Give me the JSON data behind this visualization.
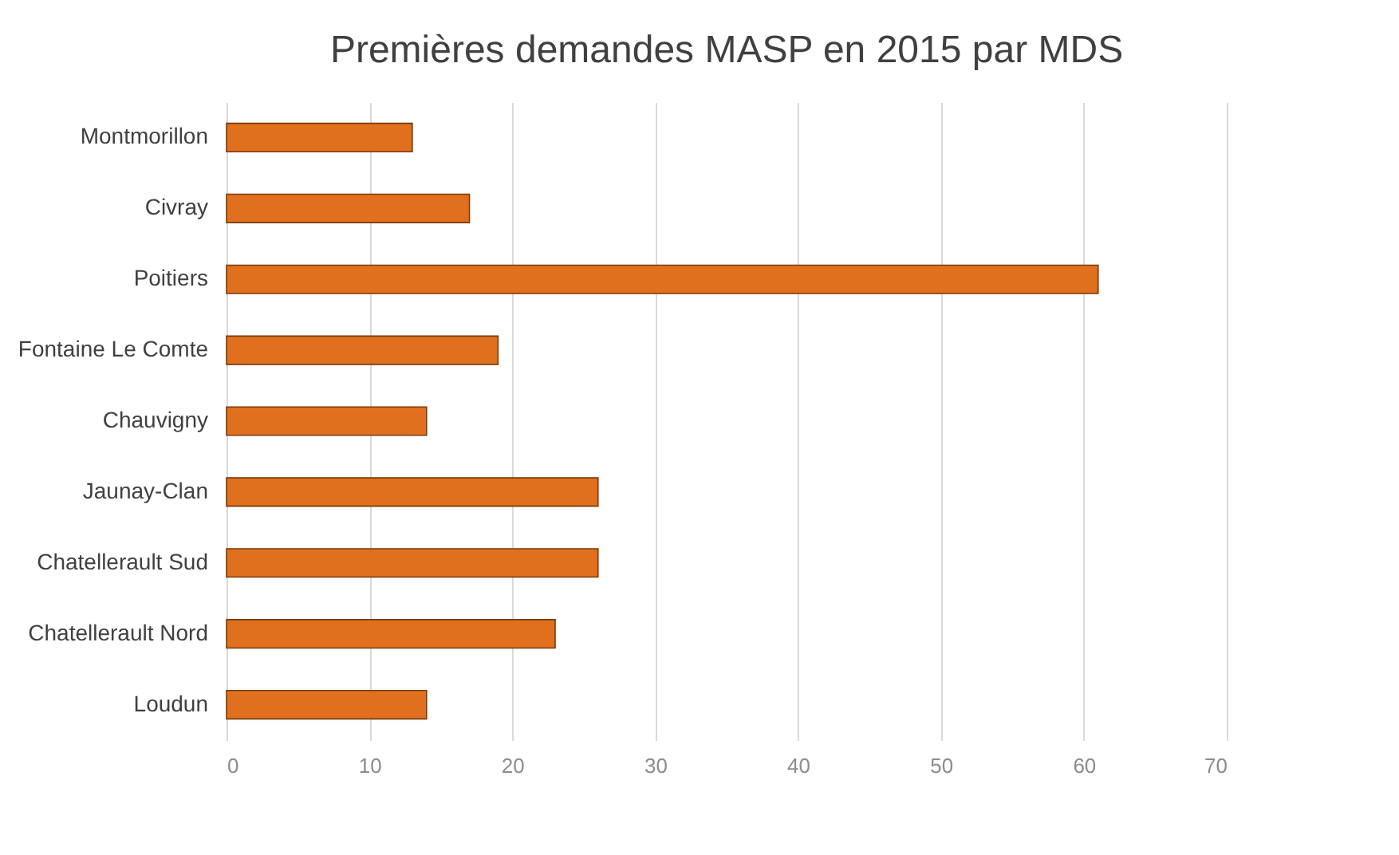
{
  "chart_data": {
    "type": "bar",
    "orientation": "horizontal",
    "title": "Premières demandes MASP en 2015 par MDS",
    "categories": [
      "Montmorillon",
      "Civray",
      "Poitiers",
      "Fontaine Le Comte",
      "Chauvigny",
      "Jaunay-Clan",
      "Chatellerault Sud",
      "Chatellerault Nord",
      "Loudun"
    ],
    "values": [
      13,
      17,
      61,
      19,
      14,
      26,
      26,
      23,
      14
    ],
    "color": "#e0701e",
    "xlim": [
      0,
      70
    ],
    "xticks": [
      0,
      10,
      20,
      30,
      40,
      50,
      60,
      70
    ],
    "grid": "x"
  }
}
